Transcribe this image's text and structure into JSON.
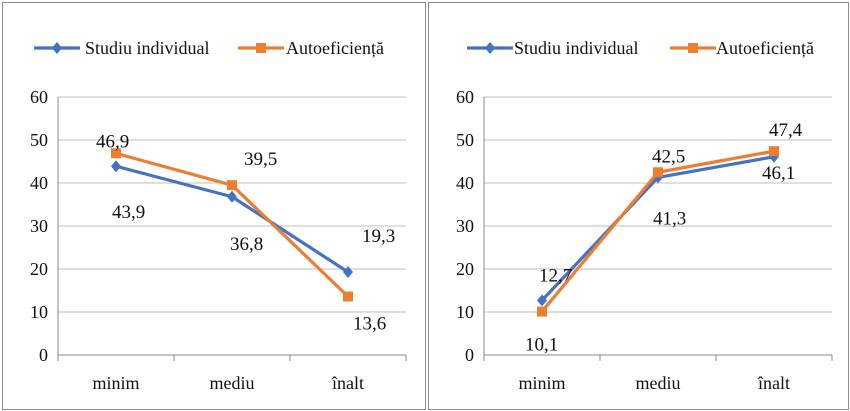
{
  "chart_data": [
    {
      "type": "line",
      "categories": [
        "minim",
        "mediu",
        "înalt"
      ],
      "ylim": [
        0,
        60
      ],
      "yticks": [
        0,
        10,
        20,
        30,
        40,
        50,
        60
      ],
      "grid": true,
      "legend_position": "top",
      "series": [
        {
          "name": "Studiu individual",
          "color": "#4472C4",
          "marker": "diamond",
          "values": [
            43.9,
            36.8,
            19.3
          ],
          "labels": [
            "43,9",
            "36,8",
            "19,3"
          ]
        },
        {
          "name": "Autoeficiență",
          "color": "#ED7D31",
          "marker": "square",
          "values": [
            46.9,
            39.5,
            13.6
          ],
          "labels": [
            "46,9",
            "39,5",
            "13,6"
          ]
        }
      ]
    },
    {
      "type": "line",
      "categories": [
        "minim",
        "mediu",
        "înalt"
      ],
      "ylim": [
        0,
        60
      ],
      "yticks": [
        0,
        10,
        20,
        30,
        40,
        50,
        60
      ],
      "grid": true,
      "legend_position": "top",
      "series": [
        {
          "name": "Studiu individual",
          "color": "#4472C4",
          "marker": "diamond",
          "values": [
            12.7,
            41.3,
            46.1
          ],
          "labels": [
            "12,7",
            "41,3",
            "46,1"
          ]
        },
        {
          "name": "Autoeficiență",
          "color": "#ED7D31",
          "marker": "square",
          "values": [
            10.1,
            42.5,
            47.4
          ],
          "labels": [
            "10,1",
            "42,5",
            "47,4"
          ]
        }
      ]
    }
  ]
}
